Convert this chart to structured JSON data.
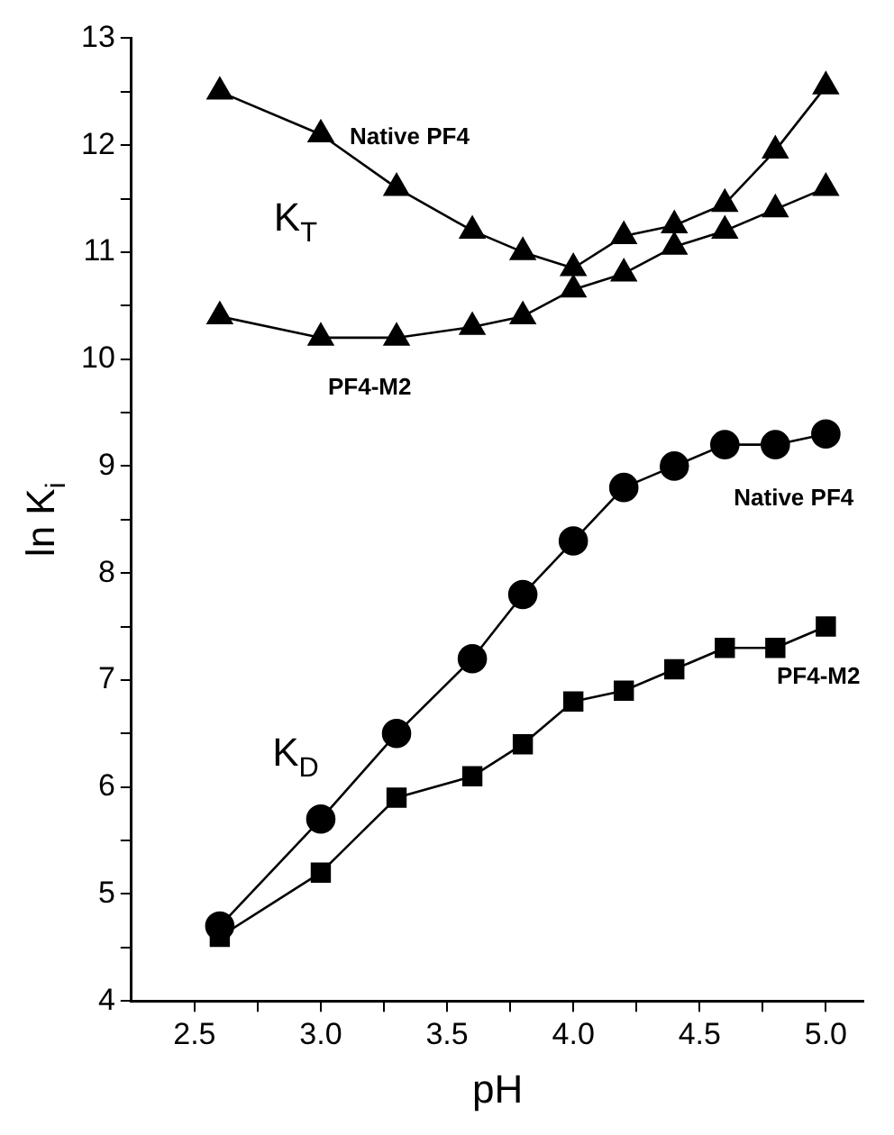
{
  "chart_data": {
    "type": "line",
    "xlabel": "pH",
    "ylabel": "ln K$_{i}$",
    "x": [
      2.6,
      3.0,
      3.3,
      3.6,
      3.8,
      4.0,
      4.2,
      4.4,
      4.6,
      4.8,
      5.0
    ],
    "series": [
      {
        "name": "Native PF4",
        "color": "#000000",
        "marker": "triangle",
        "values": [
          12.5,
          12.1,
          11.6,
          11.2,
          11.0,
          10.85,
          11.15,
          11.25,
          11.45,
          11.95,
          12.55
        ]
      },
      {
        "name": "PF4-M2",
        "color": "#000000",
        "marker": "triangle",
        "values": [
          10.4,
          10.2,
          10.2,
          10.3,
          10.4,
          10.65,
          10.8,
          11.05,
          11.2,
          11.4,
          11.6
        ]
      },
      {
        "name": "Native PF4",
        "color": "#000000",
        "marker": "circle",
        "values": [
          4.7,
          5.7,
          6.5,
          7.2,
          7.8,
          8.3,
          8.8,
          9.0,
          9.2,
          9.2,
          9.3
        ]
      },
      {
        "name": "PF4-M2",
        "color": "#000000",
        "marker": "square",
        "values": [
          4.6,
          5.2,
          5.9,
          6.1,
          6.4,
          6.8,
          6.9,
          7.1,
          7.3,
          7.3,
          7.5
        ]
      }
    ],
    "annotations": [
      "K$_{T}$",
      "K$_{D}$"
    ],
    "xlim": [
      2.25,
      5.15
    ],
    "xticks": [
      {
        "value": 2.5,
        "label": "2.5"
      },
      {
        "value": 2.75,
        "label": null
      },
      {
        "value": 3.0,
        "label": "3.0"
      },
      {
        "value": 3.25,
        "label": null
      },
      {
        "value": 3.5,
        "label": "3.5"
      },
      {
        "value": 3.75,
        "label": null
      },
      {
        "value": 4.0,
        "label": "4.0"
      },
      {
        "value": 4.25,
        "label": null
      },
      {
        "value": 4.5,
        "label": "4.5"
      },
      {
        "value": 4.75,
        "label": null
      },
      {
        "value": 5.0,
        "label": "5.0"
      }
    ],
    "ylim": [
      4,
      13
    ],
    "yticks": [
      4,
      {
        "value": 4.5,
        "label": null
      },
      5,
      {
        "value": 5.5,
        "label": null
      },
      6,
      {
        "value": 6.5,
        "label": null
      },
      7,
      {
        "value": 7.5,
        "label": null
      },
      8,
      {
        "value": 8.5,
        "label": null
      },
      9,
      {
        "value": 9.5,
        "label": null
      },
      10,
      {
        "value": 10.5,
        "label": null
      },
      11,
      {
        "value": 11.5,
        "label": null
      },
      12,
      {
        "value": 12.5,
        "label": null
      },
      13
    ],
    "grid": false,
    "legend": false,
    "line_style": "solid"
  }
}
